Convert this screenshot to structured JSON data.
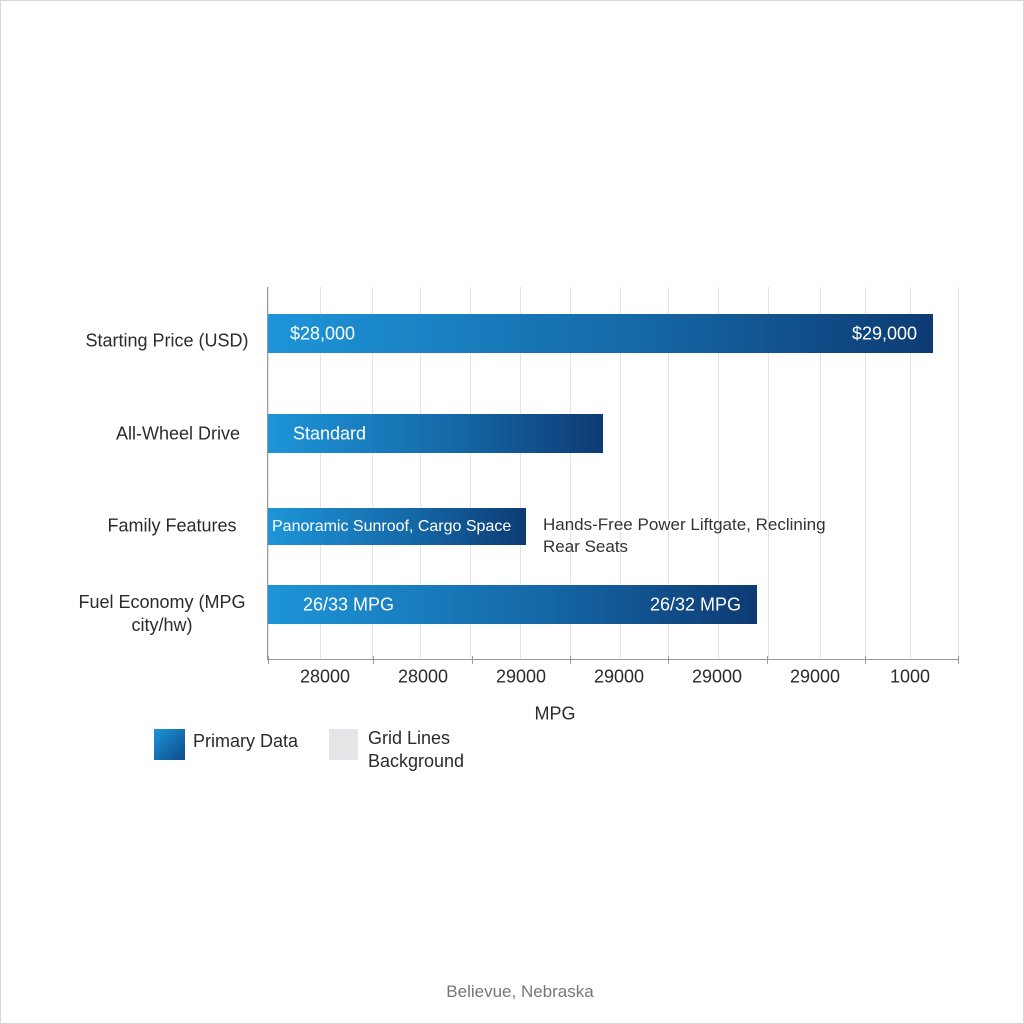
{
  "rows": [
    {
      "label": [
        "Starting Price (USD)"
      ],
      "bar_texts": [
        "$28,000",
        "$29,000"
      ]
    },
    {
      "label": [
        "All-Wheel Drive"
      ],
      "bar_texts": [
        "Standard"
      ]
    },
    {
      "label": [
        "Family Features"
      ],
      "bar_texts": [
        "Panoramic Sunroof, Cargo Space"
      ],
      "outside_text": [
        "Hands-Free Power Liftgate, Reclining",
        "Rear Seats"
      ]
    },
    {
      "label": [
        "Fuel Economy (MPG",
        "city/hw)"
      ],
      "bar_texts": [
        "26/33 MPG",
        "26/32 MPG"
      ]
    }
  ],
  "axis": {
    "ticks": [
      "28000",
      "28000",
      "29000",
      "29000",
      "29000",
      "29000",
      "1000"
    ],
    "title": "MPG"
  },
  "legend": [
    {
      "text": [
        "Primary Data"
      ]
    },
    {
      "text": [
        "Grid Lines",
        "Background"
      ]
    }
  ],
  "footer": "Believue, Nebraska"
}
